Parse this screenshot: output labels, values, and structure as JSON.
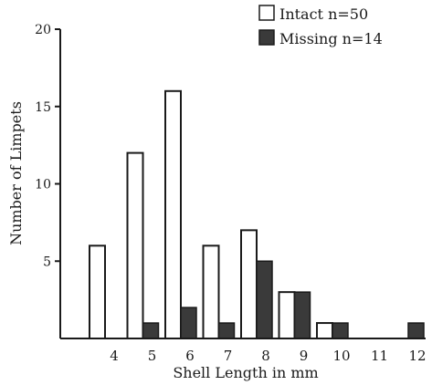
{
  "chart_data": {
    "type": "bar",
    "title": "",
    "xlabel": "Shell Length in mm",
    "ylabel": "Number of Limpets",
    "categories": [
      "4",
      "5",
      "6",
      "7",
      "8",
      "9",
      "10",
      "11",
      "12"
    ],
    "ylim": [
      0,
      20
    ],
    "yticks": [
      "5",
      "10",
      "15",
      "20"
    ],
    "grid": false,
    "legend_placement": "top-right",
    "series": [
      {
        "name": "Intact n=50",
        "values": [
          6,
          12,
          16,
          6,
          7,
          3,
          1,
          0,
          0
        ],
        "color": "#ffffff"
      },
      {
        "name": "Missing n=14",
        "values": [
          0,
          1,
          2,
          1,
          5,
          3,
          1,
          0,
          1
        ],
        "color": "#3a3a3a"
      }
    ]
  }
}
